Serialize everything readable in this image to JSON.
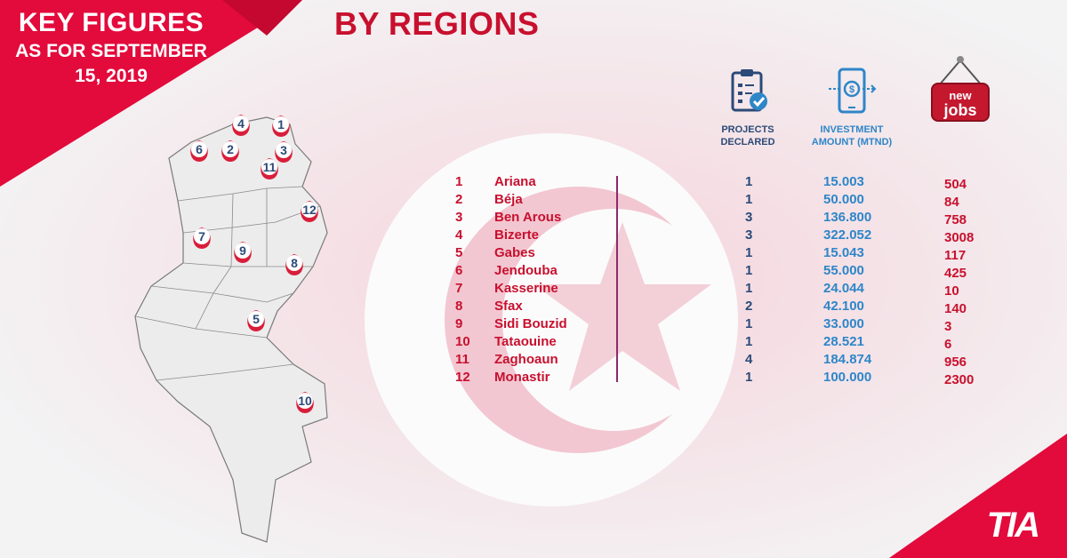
{
  "banner": {
    "title": "KEY FIGURES",
    "subtitle_line1": "AS FOR SEPTEMBER",
    "subtitle_line2": "15, 2019"
  },
  "section_title": "BY REGIONS",
  "columns": {
    "projects": {
      "line1": "PROJECTS",
      "line2": "DECLARED",
      "icon": "clipboard-check-icon"
    },
    "investment": {
      "line1": "INVESTMENT",
      "line2": "AMOUNT (MTND)",
      "icon": "phone-dollar-icon"
    },
    "jobs": {
      "sign_line1": "new",
      "sign_line2": "jobs",
      "icon": "new-jobs-sign-icon"
    }
  },
  "rows": [
    {
      "num": "1",
      "region": "Ariana",
      "projects": "1",
      "investment": "15.003",
      "jobs": "504"
    },
    {
      "num": "2",
      "region": "Béja",
      "projects": "1",
      "investment": "50.000",
      "jobs": "84"
    },
    {
      "num": "3",
      "region": "Ben Arous",
      "projects": "3",
      "investment": "136.800",
      "jobs": "758"
    },
    {
      "num": "4",
      "region": "Bizerte",
      "projects": "3",
      "investment": "322.052",
      "jobs": "3008"
    },
    {
      "num": "5",
      "region": "Gabes",
      "projects": "1",
      "investment": "15.043",
      "jobs": "117"
    },
    {
      "num": "6",
      "region": "Jendouba",
      "projects": "1",
      "investment": "55.000",
      "jobs": "425"
    },
    {
      "num": "7",
      "region": "Kasserine",
      "projects": "1",
      "investment": "24.044",
      "jobs": "10"
    },
    {
      "num": "8",
      "region": "Sfax",
      "projects": "2",
      "investment": "42.100",
      "jobs": "140"
    },
    {
      "num": "9",
      "region": "Sidi Bouzid",
      "projects": "1",
      "investment": "33.000",
      "jobs": "3"
    },
    {
      "num": "10",
      "region": "Tataouine",
      "projects": "1",
      "investment": "28.521",
      "jobs": "6"
    },
    {
      "num": "11",
      "region": "Zaghoaun",
      "projects": "4",
      "investment": "184.874",
      "jobs": "956"
    },
    {
      "num": "12",
      "region": "Monastir",
      "projects": "1",
      "investment": "100.000",
      "jobs": "2300"
    }
  ],
  "map_pins": [
    "1",
    "2",
    "3",
    "4",
    "5",
    "6",
    "7",
    "8",
    "9",
    "10",
    "11",
    "12"
  ],
  "logo": "TIA",
  "colors": {
    "brand_red": "#e30a3c",
    "title_red": "#c8102e",
    "navy": "#2b4a78",
    "blue": "#2e86c8"
  }
}
